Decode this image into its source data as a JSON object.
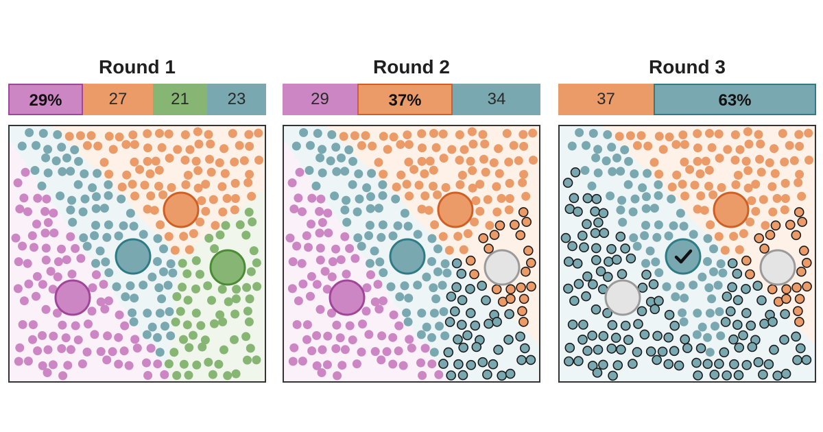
{
  "colors": {
    "purple": "#cc86c3",
    "purple_dark": "#a1449a",
    "orange": "#ea9b68",
    "orange_dark": "#cf5f24",
    "green": "#86b574",
    "green_dark": "#4a8b34",
    "teal": "#7aa8b0",
    "teal_dark": "#2d7b86",
    "grey": "#e4e4e4",
    "grey_dark": "#9a9a9a"
  },
  "rounds": [
    {
      "title": "Round 1",
      "results": [
        {
          "label": "29%",
          "share": 29,
          "color": "purple",
          "leader": true
        },
        {
          "label": "27",
          "share": 27,
          "color": "orange",
          "leader": false
        },
        {
          "label": "21",
          "share": 21,
          "color": "green",
          "leader": false
        },
        {
          "label": "23",
          "share": 23,
          "color": "teal",
          "leader": false
        }
      ]
    },
    {
      "title": "Round 2",
      "results": [
        {
          "label": "29",
          "share": 29,
          "color": "purple",
          "leader": false
        },
        {
          "label": "37%",
          "share": 37,
          "color": "orange",
          "leader": true
        },
        {
          "label": "34",
          "share": 34,
          "color": "teal",
          "leader": false
        }
      ]
    },
    {
      "title": "Round 3",
      "results": [
        {
          "label": "37",
          "share": 37,
          "color": "orange",
          "leader": false
        },
        {
          "label": "63%",
          "share": 63,
          "color": "teal",
          "leader": true
        }
      ]
    }
  ]
}
